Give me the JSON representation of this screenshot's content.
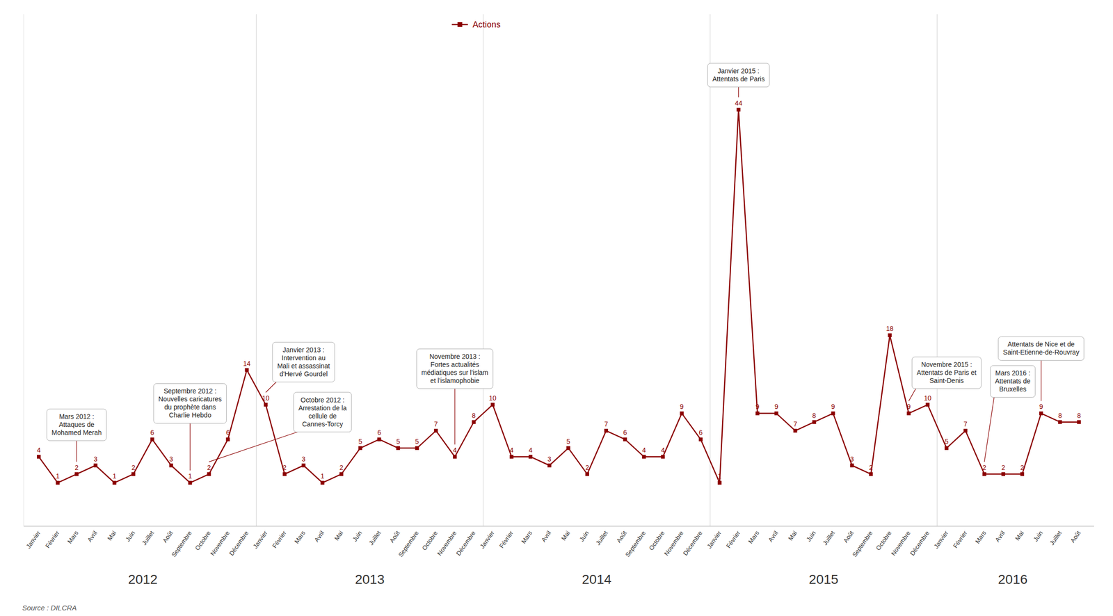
{
  "chart_data": {
    "type": "line",
    "categories": [
      "Janvier",
      "Février",
      "Mars",
      "Avril",
      "Mai",
      "Juin",
      "Juillet",
      "Août",
      "Septembre",
      "Octobre",
      "Novembre",
      "Décembre",
      "Janvier",
      "Février",
      "Mars",
      "Avril",
      "Mai",
      "Juin",
      "Juillet",
      "Août",
      "Septembre",
      "Octobre",
      "Novembre",
      "Décembre",
      "Janvier",
      "Février",
      "Mars",
      "Avril",
      "Mai",
      "Juin",
      "Juillet",
      "Août",
      "Septembre",
      "Octobre",
      "Novembre",
      "Décembre",
      "Janvier",
      "Février",
      "Mars",
      "Avril",
      "Mai",
      "Juin",
      "Juillet",
      "Août",
      "Septembre",
      "Octobre",
      "Novembre",
      "Décembre",
      "Janvier",
      "Février",
      "Mars",
      "Avril",
      "Mai",
      "Juin",
      "Juillet",
      "Août"
    ],
    "series": [
      {
        "name": "Actions",
        "color": "#8B0000",
        "marker": "square",
        "values": [
          4,
          1,
          2,
          3,
          1,
          2,
          6,
          3,
          1,
          2,
          6,
          14,
          10,
          2,
          3,
          1,
          2,
          5,
          6,
          5,
          5,
          7,
          4,
          8,
          10,
          4,
          4,
          3,
          5,
          2,
          7,
          6,
          4,
          4,
          9,
          6,
          1,
          44,
          9,
          9,
          7,
          8,
          9,
          3,
          2,
          18,
          9,
          10,
          5,
          7,
          2,
          2,
          2,
          9,
          8,
          8
        ]
      }
    ],
    "ylim": [
      -4,
      55
    ],
    "tick_labels": "x",
    "grid": false,
    "legend": "top",
    "data_labels": true,
    "years": [
      2012,
      2013,
      2014,
      2015,
      2016
    ],
    "annotations": [
      {
        "text": "Mars 2012 :\nAttaques de\nMohamed Merah",
        "index": 2
      },
      {
        "text": "Septembre 2012 :\nNouvelles caricatures\ndu prophète dans\nCharlie Hebdo",
        "index": 8
      },
      {
        "text": "Octobre 2012 :\nArrestation de la\ncellule de\nCannes-Torcy",
        "index": 9
      },
      {
        "text": "Janvier 2013 :\nIntervention au\nMali et assassinat\nd'Hervé Gourdel",
        "index": 12
      },
      {
        "text": "Novembre 2013 :\nFortes actualités\nmédiatiques sur l'islam\net l'islamophobie",
        "index": 22
      },
      {
        "text": "Janvier 2015 :\nAttentats de Paris",
        "index": 37
      },
      {
        "text": "Novembre 2015 :\nAttentats de Paris et\nSaint-Denis",
        "index": 46
      },
      {
        "text": "Mars 2016 :\nAttentats de\nBruxelles",
        "index": 50
      },
      {
        "text": "Attentats de Nice et de\nSaint-Etienne-de-Rouvray",
        "index": 53
      }
    ],
    "source": "Source : DILCRA"
  }
}
